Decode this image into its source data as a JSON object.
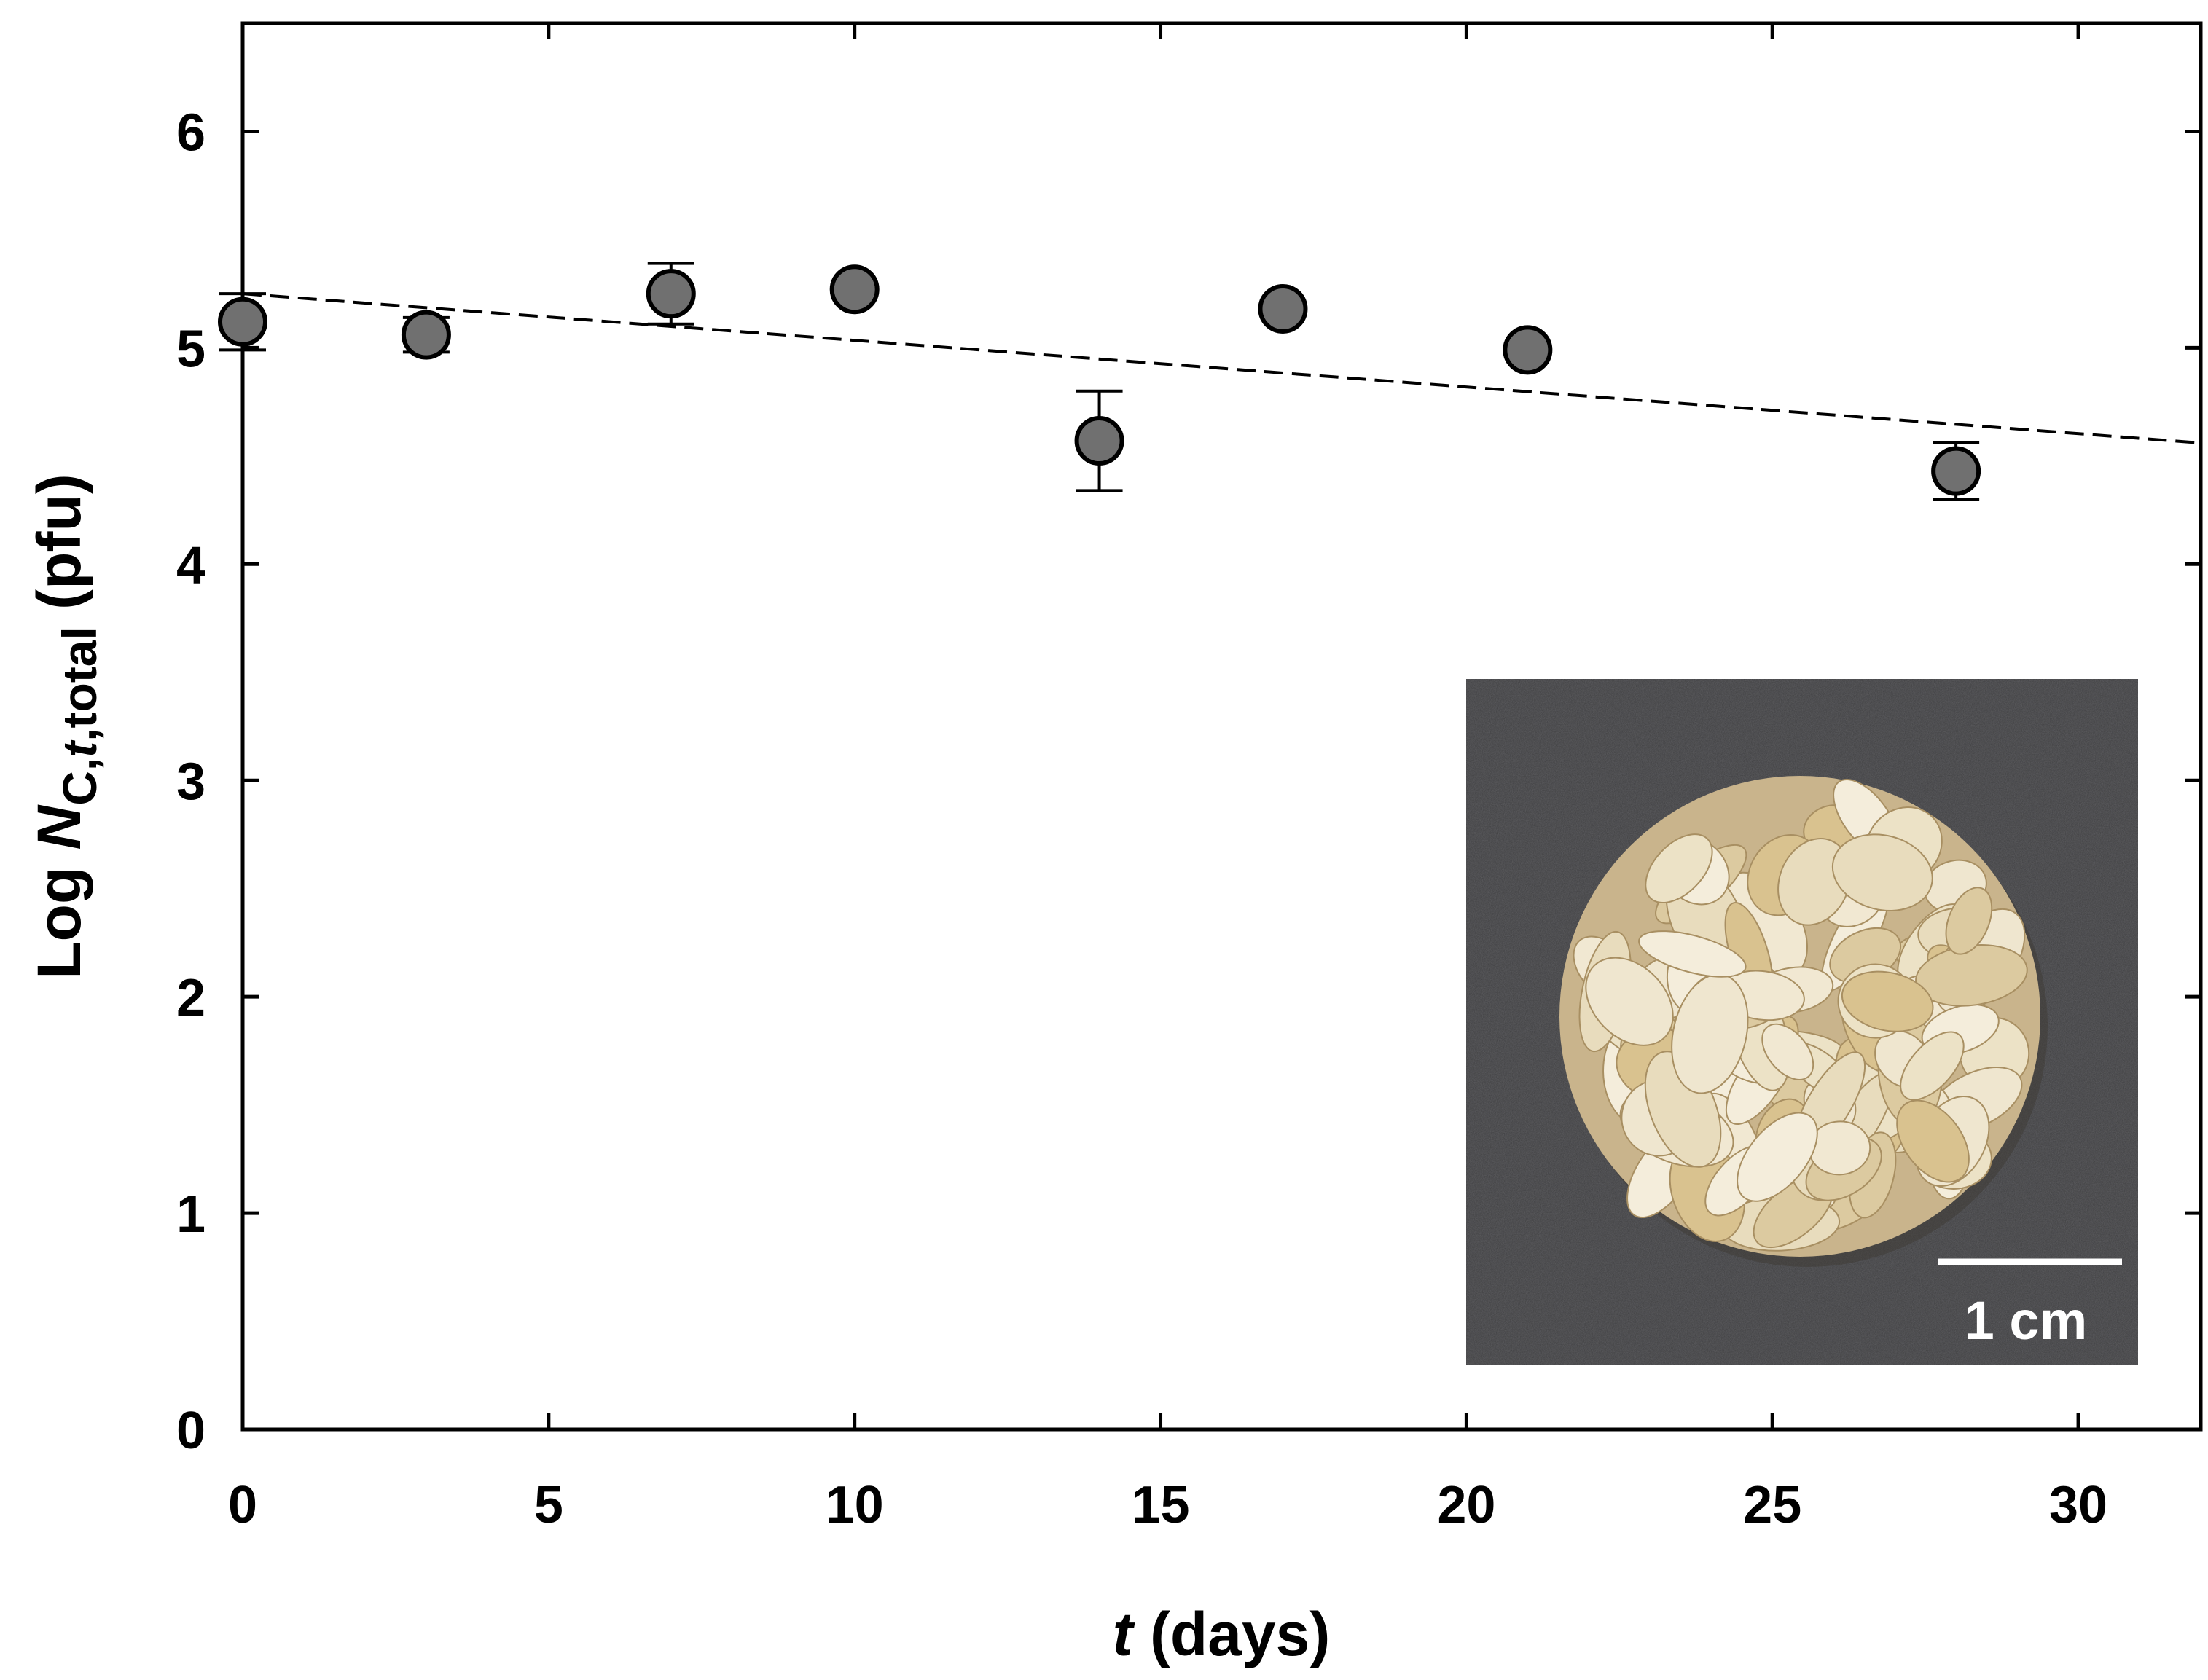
{
  "chart_data": {
    "type": "scatter",
    "title": "",
    "xlabel": {
      "italic": "t",
      "rest": " (days)"
    },
    "ylabel": {
      "prefix": "Log ",
      "symbol": "N",
      "subscript_1": "C,",
      "subscript_italic": "t",
      "subscript_2": ",total",
      "suffix": " (pfu)"
    },
    "xlim": [
      0,
      32
    ],
    "ylim": [
      0,
      6.5
    ],
    "xticks": [
      0,
      5,
      10,
      15,
      20,
      25,
      30
    ],
    "yticks": [
      0,
      1,
      2,
      3,
      4,
      5,
      6
    ],
    "grid": false,
    "series": [
      {
        "x": [
          0,
          3,
          7,
          10,
          14,
          17,
          21,
          28
        ],
        "y": [
          5.12,
          5.06,
          5.25,
          5.27,
          4.57,
          5.18,
          4.99,
          4.43
        ],
        "error": [
          0.13,
          0.08,
          0.14,
          0.03,
          0.23,
          0.03,
          0.02,
          0.13
        ],
        "marker_color": "#707070"
      }
    ],
    "trendline": {
      "style": "dashed",
      "x": [
        0,
        32
      ],
      "y": [
        5.25,
        4.56
      ]
    },
    "inset": {
      "label": "1 cm",
      "background": "#5f5f62",
      "object_color": "#e6dcc2"
    }
  }
}
